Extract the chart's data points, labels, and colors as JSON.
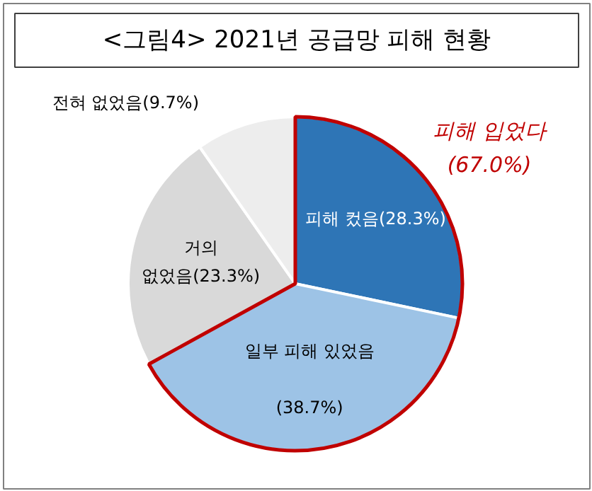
{
  "chart_data": {
    "type": "pie",
    "title": "<그림4> 2021년 공급망 피해 현황",
    "categories": [
      "피해 컸음",
      "일부 피해 있었음",
      "거의 없었음",
      "전혀 없었음"
    ],
    "values": [
      28.3,
      38.7,
      23.3,
      9.7
    ],
    "value_labels": [
      "(28.3%)",
      "(38.7%)",
      "(23.3%)",
      "(9.7%)"
    ],
    "colors": [
      "#2e75b6",
      "#9dc3e6",
      "#d9d9d9",
      "#ededed"
    ],
    "annotations": [
      "피해 입었다\n(67.0%)"
    ]
  }
}
